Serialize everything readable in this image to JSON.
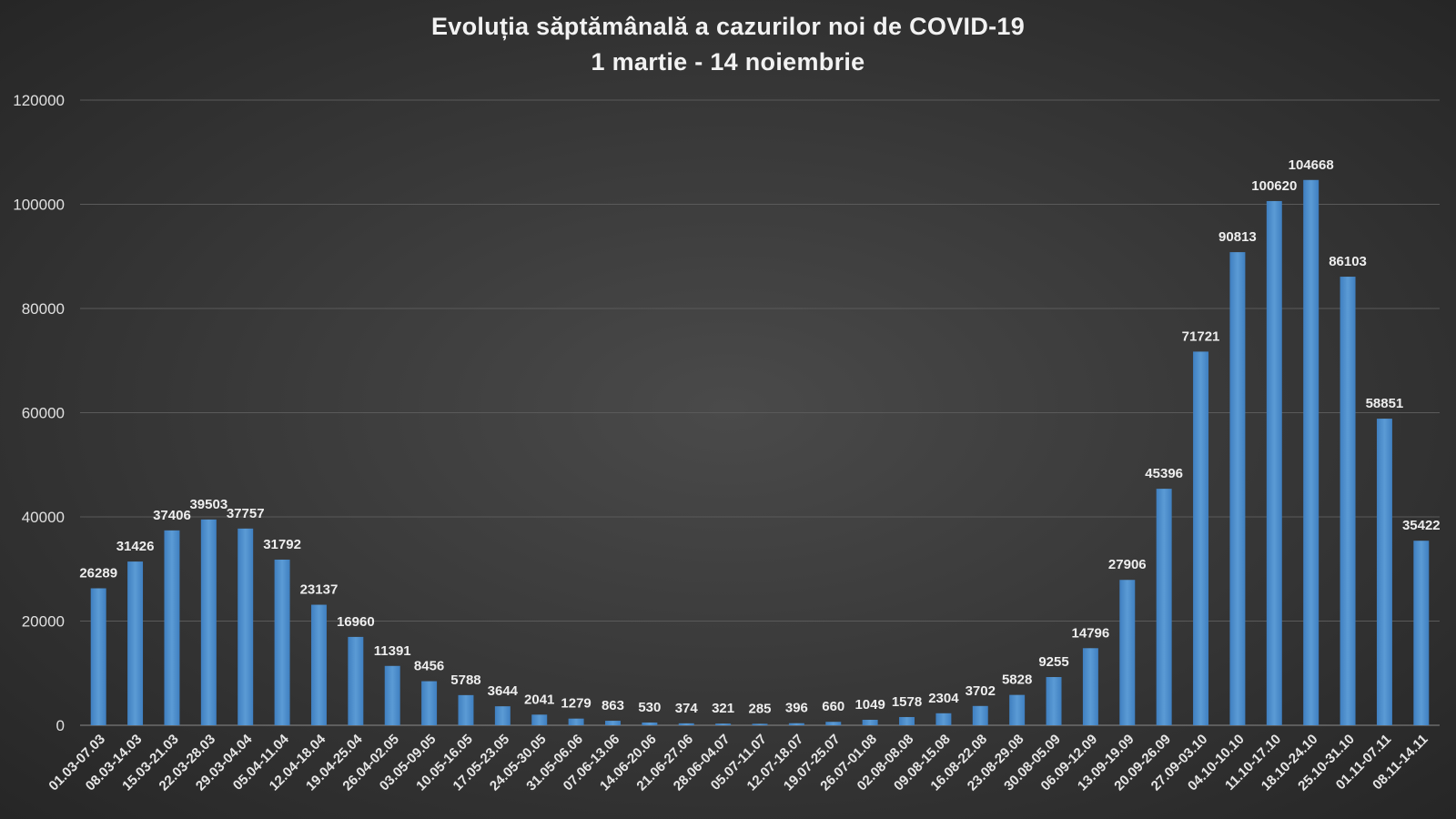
{
  "chart_data": {
    "type": "bar",
    "title": "Evoluția săptămânală a cazurilor noi de COVID-19",
    "subtitle": "1 martie - 14 noiembrie",
    "xlabel": "",
    "ylabel": "",
    "ylim": [
      0,
      120000
    ],
    "yticks": [
      "0",
      "20000",
      "40000",
      "60000",
      "80000",
      "100000",
      "120000"
    ],
    "grid": true,
    "legend": "none",
    "bar_color": "#5b9bd5",
    "categories": [
      "01.03-07.03",
      "08.03-14.03",
      "15.03-21.03",
      "22.03-28.03",
      "29.03-04.04",
      "05.04-11.04",
      "12.04-18.04",
      "19.04-25.04",
      "26.04-02.05",
      "03.05-09.05",
      "10.05-16.05",
      "17.05-23.05",
      "24.05-30.05",
      "31.05-06.06",
      "07.06-13.06",
      "14.06-20.06",
      "21.06-27.06",
      "28.06-04.07",
      "05.07-11.07",
      "12.07-18.07",
      "19.07-25.07",
      "26.07-01.08",
      "02.08-08.08",
      "09.08-15.08",
      "16.08-22.08",
      "23.08-29.08",
      "30.08-05.09",
      "06.09-12.09",
      "13.09-19.09",
      "20.09-26.09",
      "27.09-03.10",
      "04.10-10.10",
      "11.10-17.10",
      "18.10-24.10",
      "25.10-31.10",
      "01.11-07.11",
      "08.11-14.11"
    ],
    "values": [
      26289,
      31426,
      37406,
      39503,
      37757,
      31792,
      23137,
      16960,
      11391,
      8456,
      5788,
      3644,
      2041,
      1279,
      863,
      530,
      374,
      321,
      285,
      396,
      660,
      1049,
      1578,
      2304,
      3702,
      5828,
      9255,
      14796,
      27906,
      45396,
      71721,
      90813,
      100620,
      104668,
      86103,
      58851,
      35422
    ]
  }
}
